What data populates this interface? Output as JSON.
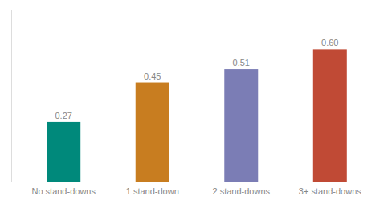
{
  "chart_data": {
    "type": "bar",
    "categories": [
      "No stand-downs",
      "1 stand-down",
      "2 stand-downs",
      "3+ stand-downs"
    ],
    "values": [
      0.27,
      0.45,
      0.51,
      0.6
    ],
    "value_labels": [
      "0.27",
      "0.45",
      "0.51",
      "0.60"
    ],
    "colors": [
      "#00897B",
      "#C87D20",
      "#7B7DB5",
      "#C04A35"
    ],
    "ylim": [
      0,
      0.78
    ],
    "data_labels": true,
    "tick_labels": "x"
  }
}
